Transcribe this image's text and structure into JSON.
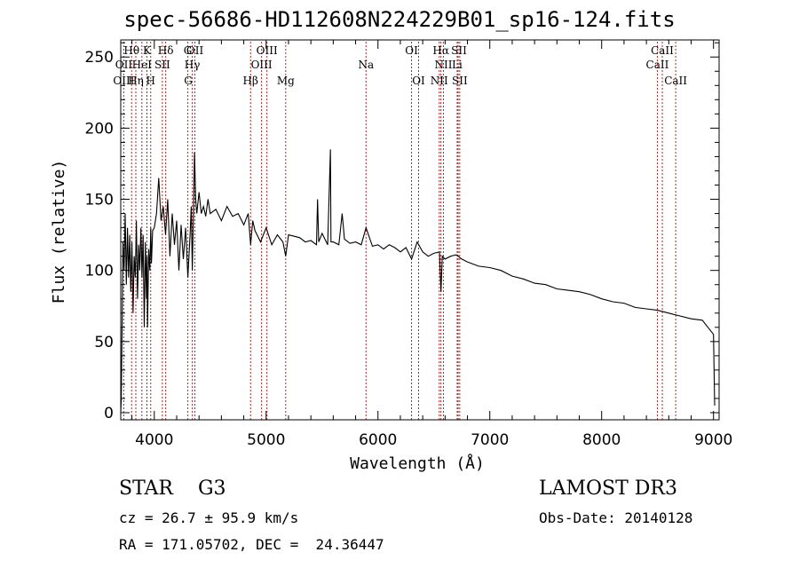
{
  "chart_data": {
    "type": "line",
    "title": "spec-56686-HD112608N224229B01_sp16-124.fits",
    "xlabel": "Wavelength (Å)",
    "ylabel": "Flux (relative)",
    "xlim": [
      3700,
      9050
    ],
    "ylim": [
      -5,
      262
    ],
    "xticks": [
      4000,
      5000,
      6000,
      7000,
      8000,
      9000
    ],
    "yticks": [
      0,
      50,
      100,
      150,
      200,
      250
    ],
    "xtick_labels": [
      "4000",
      "5000",
      "6000",
      "7000",
      "8000",
      "9000"
    ],
    "ytick_labels": [
      "0",
      "50",
      "100",
      "150",
      "200",
      "250"
    ],
    "series": [
      {
        "name": "spectrum",
        "x": [
          3700,
          3705,
          3712,
          3720,
          3730,
          3740,
          3750,
          3760,
          3770,
          3780,
          3790,
          3800,
          3810,
          3820,
          3830,
          3840,
          3850,
          3860,
          3870,
          3880,
          3890,
          3900,
          3910,
          3920,
          3930,
          3935,
          3940,
          3950,
          3960,
          3968,
          3975,
          3985,
          4000,
          4020,
          4040,
          4060,
          4080,
          4101,
          4120,
          4140,
          4160,
          4180,
          4200,
          4220,
          4240,
          4260,
          4280,
          4300,
          4320,
          4330,
          4340,
          4350,
          4360,
          4370,
          4380,
          4400,
          4420,
          4440,
          4460,
          4480,
          4500,
          4550,
          4600,
          4650,
          4700,
          4750,
          4800,
          4840,
          4861,
          4880,
          4900,
          4950,
          5000,
          5050,
          5100,
          5150,
          5175,
          5200,
          5250,
          5300,
          5350,
          5400,
          5450,
          5460,
          5470,
          5500,
          5550,
          5575,
          5580,
          5600,
          5650,
          5680,
          5700,
          5750,
          5800,
          5850,
          5893,
          5950,
          6000,
          6050,
          6100,
          6150,
          6200,
          6250,
          6300,
          6350,
          6400,
          6450,
          6500,
          6550,
          6563,
          6575,
          6600,
          6650,
          6700,
          6750,
          6800,
          6900,
          7000,
          7100,
          7200,
          7300,
          7400,
          7500,
          7600,
          7700,
          7800,
          7900,
          8000,
          8100,
          8200,
          8300,
          8400,
          8500,
          8600,
          8700,
          8800,
          8900,
          8950,
          9000,
          9010
        ],
        "y": [
          0,
          10,
          60,
          120,
          100,
          140,
          90,
          130,
          95,
          125,
          85,
          120,
          70,
          110,
          95,
          135,
          80,
          118,
          100,
          130,
          95,
          125,
          60,
          120,
          80,
          110,
          60,
          115,
          100,
          130,
          105,
          128,
          130,
          140,
          165,
          135,
          145,
          125,
          150,
          110,
          140,
          118,
          135,
          100,
          132,
          108,
          130,
          95,
          125,
          145,
          100,
          140,
          183,
          150,
          140,
          155,
          140,
          145,
          138,
          150,
          140,
          143,
          135,
          145,
          138,
          140,
          132,
          140,
          118,
          135,
          128,
          120,
          130,
          118,
          125,
          120,
          110,
          125,
          124,
          123,
          120,
          121,
          118,
          150,
          120,
          126,
          118,
          185,
          120,
          120,
          118,
          140,
          122,
          119,
          120,
          118,
          130,
          117,
          118,
          115,
          118,
          116,
          113,
          116,
          108,
          120,
          113,
          110,
          112,
          113,
          85,
          110,
          108,
          110,
          111,
          108,
          106,
          103,
          102,
          100,
          96,
          94,
          91,
          90,
          87,
          86,
          85,
          83,
          80,
          78,
          77,
          74,
          73,
          72,
          70,
          68,
          66,
          65,
          60,
          55,
          5
        ]
      }
    ],
    "line_labels": {
      "row1": [
        {
          "text": "Hθ",
          "x": 3797
        },
        {
          "text": "K",
          "x": 3934
        },
        {
          "text": "Hδ",
          "x": 4102
        },
        {
          "text": "G",
          "x": 4300
        },
        {
          "text": "OII",
          "x": 4363
        },
        {
          "text": "OIII",
          "x": 5007
        },
        {
          "text": "OI",
          "x": 6300
        },
        {
          "text": "Hα",
          "x": 6563
        },
        {
          "text": "SII",
          "x": 6724
        },
        {
          "text": "CaII",
          "x": 8542
        }
      ],
      "row2": [
        {
          "text": "OII",
          "x": 3727
        },
        {
          "text": "HeI",
          "x": 3889
        },
        {
          "text": "SII",
          "x": 4072
        },
        {
          "text": "Hγ",
          "x": 4340
        },
        {
          "text": "OIII",
          "x": 4959
        },
        {
          "text": "Na",
          "x": 5893
        },
        {
          "text": "NII",
          "x": 6585
        },
        {
          "text": "Li",
          "x": 6708
        },
        {
          "text": "CaII",
          "x": 8498
        }
      ],
      "row3": [
        {
          "text": "OIII",
          "x": 3727
        },
        {
          "text": "Hη",
          "x": 3835
        },
        {
          "text": "H",
          "x": 3968
        },
        {
          "text": "G",
          "x": 4304
        },
        {
          "text": "Hβ",
          "x": 4861
        },
        {
          "text": "Mg",
          "x": 5175
        },
        {
          "text": "OI",
          "x": 6363
        },
        {
          "text": "NII",
          "x": 6548
        },
        {
          "text": "SII",
          "x": 6731
        },
        {
          "text": "CaII",
          "x": 8662
        }
      ]
    },
    "line_markers": [
      3727,
      3797,
      3835,
      3889,
      3934,
      3968,
      4072,
      4102,
      4300,
      4340,
      4363,
      4861,
      4959,
      5007,
      5175,
      5893,
      6300,
      6363,
      6548,
      6563,
      6585,
      6708,
      6717,
      6731,
      8498,
      8542,
      8662
    ],
    "marker_color": "#b22222"
  },
  "info": {
    "class_label": "STAR    G3",
    "survey_label": "LAMOST DR3",
    "cz_line": "cz = 26.7 ± 95.9 km/s",
    "obs_date": "Obs-Date: 20140128",
    "coords_line": "RA = 171.05702, DEC =  24.36447"
  }
}
